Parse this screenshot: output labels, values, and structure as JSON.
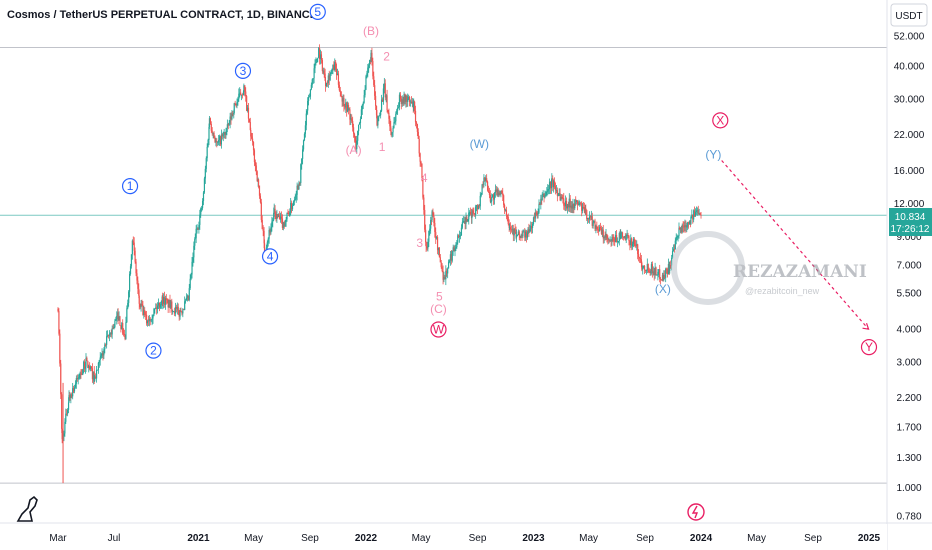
{
  "chart_title": "Cosmos / TetherUS PERPETUAL CONTRACT, 1D, BINANCE",
  "currency": "USDT",
  "price_badge": {
    "price": "10.834",
    "countdown": "17:26:12"
  },
  "watermark": {
    "name": "REZAZAMANI",
    "handle": "@rezabitcoin_new"
  },
  "colors": {
    "up": "#26a69a",
    "down": "#ef5350",
    "wave_blue": "#2962ff",
    "wave_blue_light": "#5b9bd5",
    "wave_pink": "#f48fb1",
    "wave_red": "#e91e63",
    "grid_line": "#b2b5be",
    "price_line": "#26a69a"
  },
  "chart_data": {
    "type": "candlestick",
    "y_scale": "log",
    "ylim": [
      0.7,
      60
    ],
    "y_ticks": [
      "52.000",
      "40.000",
      "30.000",
      "22.000",
      "16.000",
      "12.000",
      "9.000",
      "7.000",
      "5.500",
      "4.000",
      "3.000",
      "2.200",
      "1.700",
      "1.300",
      "1.000",
      "0.780"
    ],
    "x_ticks": [
      "Mar",
      "Jul",
      "2021",
      "May",
      "Sep",
      "2022",
      "May",
      "Sep",
      "2023",
      "May",
      "Sep",
      "2024",
      "May",
      "Sep",
      "2025"
    ],
    "horizontal_lines": [
      47.0,
      10.834,
      1.04
    ],
    "price_path": [
      [
        "2020-03-01",
        4.9
      ],
      [
        "2020-03-10",
        1.5
      ],
      [
        "2020-03-25",
        2.2
      ],
      [
        "2020-05-01",
        3.0
      ],
      [
        "2020-05-20",
        2.6
      ],
      [
        "2020-06-15",
        3.6
      ],
      [
        "2020-07-10",
        4.5
      ],
      [
        "2020-07-25",
        3.7
      ],
      [
        "2020-08-10",
        9.0
      ],
      [
        "2020-08-25",
        5.0
      ],
      [
        "2020-09-10",
        4.3
      ],
      [
        "2020-10-15",
        5.2
      ],
      [
        "2020-11-20",
        4.6
      ],
      [
        "2020-12-10",
        5.2
      ],
      [
        "2020-12-25",
        9.0
      ],
      [
        "2021-01-10",
        12.0
      ],
      [
        "2021-01-25",
        25.0
      ],
      [
        "2021-02-10",
        20.0
      ],
      [
        "2021-03-05",
        23.0
      ],
      [
        "2021-03-20",
        28.0
      ],
      [
        "2021-04-10",
        33.0
      ],
      [
        "2021-04-25",
        22.0
      ],
      [
        "2021-05-12",
        14.0
      ],
      [
        "2021-05-25",
        8.0
      ],
      [
        "2021-06-15",
        11.0
      ],
      [
        "2021-07-05",
        10.0
      ],
      [
        "2021-07-25",
        12.0
      ],
      [
        "2021-08-10",
        15.0
      ],
      [
        "2021-08-25",
        27.0
      ],
      [
        "2021-09-10",
        39.0
      ],
      [
        "2021-09-20",
        46.0
      ],
      [
        "2021-10-05",
        35.0
      ],
      [
        "2021-10-25",
        40.0
      ],
      [
        "2021-11-10",
        30.0
      ],
      [
        "2021-11-25",
        27.0
      ],
      [
        "2021-12-10",
        20.0
      ],
      [
        "2022-01-01",
        35.0
      ],
      [
        "2022-01-12",
        44.0
      ],
      [
        "2022-01-25",
        24.0
      ],
      [
        "2022-02-10",
        33.0
      ],
      [
        "2022-02-25",
        22.0
      ],
      [
        "2022-03-15",
        30.0
      ],
      [
        "2022-03-31",
        30.0
      ],
      [
        "2022-04-15",
        28.0
      ],
      [
        "2022-05-01",
        17.0
      ],
      [
        "2022-05-12",
        8.0
      ],
      [
        "2022-05-25",
        11.0
      ],
      [
        "2022-06-10",
        7.5
      ],
      [
        "2022-06-20",
        6.2
      ],
      [
        "2022-07-10",
        8.0
      ],
      [
        "2022-08-01",
        10.0
      ],
      [
        "2022-08-20",
        11.0
      ],
      [
        "2022-09-05",
        12.0
      ],
      [
        "2022-09-15",
        15.5
      ],
      [
        "2022-09-30",
        12.5
      ],
      [
        "2022-10-20",
        13.5
      ],
      [
        "2022-11-10",
        10.0
      ],
      [
        "2022-11-25",
        9.0
      ],
      [
        "2022-12-20",
        9.2
      ],
      [
        "2023-01-20",
        12.5
      ],
      [
        "2023-02-10",
        14.5
      ],
      [
        "2023-03-10",
        12.0
      ],
      [
        "2023-04-10",
        12.0
      ],
      [
        "2023-04-25",
        11.0
      ],
      [
        "2023-05-15",
        10.0
      ],
      [
        "2023-06-15",
        8.5
      ],
      [
        "2023-07-10",
        9.0
      ],
      [
        "2023-08-10",
        8.5
      ],
      [
        "2023-08-25",
        7.0
      ],
      [
        "2023-09-15",
        6.8
      ],
      [
        "2023-10-10",
        6.3
      ],
      [
        "2023-10-25",
        7.0
      ],
      [
        "2023-11-15",
        9.5
      ],
      [
        "2023-12-10",
        10.5
      ],
      [
        "2023-12-28",
        11.5
      ],
      [
        "2024-01-03",
        10.8
      ]
    ],
    "projection": [
      [
        "2024-02-15",
        17.5
      ],
      [
        "2024-12-31",
        4.0
      ]
    ],
    "wave_labels": [
      {
        "text": "1",
        "date": "2020-08-05",
        "price": 13.5,
        "style": "circle",
        "color": "wave_blue"
      },
      {
        "text": "2",
        "date": "2020-09-25",
        "price": 3.2,
        "style": "circle",
        "color": "wave_blue"
      },
      {
        "text": "3",
        "date": "2021-04-08",
        "price": 37.0,
        "style": "circle",
        "color": "wave_blue"
      },
      {
        "text": "4",
        "date": "2021-06-06",
        "price": 7.3,
        "style": "circle",
        "color": "wave_blue"
      },
      {
        "text": "5",
        "date": "2021-09-18",
        "price": 62.0,
        "style": "circle",
        "color": "wave_blue"
      },
      {
        "text": "(B)",
        "date": "2022-01-12",
        "price": 52.5,
        "style": "text",
        "color": "wave_pink"
      },
      {
        "text": "2",
        "date": "2022-02-15",
        "price": 42.0,
        "style": "text",
        "color": "wave_pink"
      },
      {
        "text": "(A)",
        "date": "2021-12-05",
        "price": 18.5,
        "style": "text",
        "color": "wave_pink"
      },
      {
        "text": "1",
        "date": "2022-02-05",
        "price": 19.0,
        "style": "text",
        "color": "wave_pink"
      },
      {
        "text": "4",
        "date": "2022-05-08",
        "price": 14.5,
        "style": "text",
        "color": "wave_pink"
      },
      {
        "text": "3",
        "date": "2022-04-28",
        "price": 8.2,
        "style": "text",
        "color": "wave_pink"
      },
      {
        "text": "5",
        "date": "2022-06-10",
        "price": 5.15,
        "style": "text",
        "color": "wave_pink"
      },
      {
        "text": "(C)",
        "date": "2022-06-08",
        "price": 4.6,
        "style": "text",
        "color": "wave_pink"
      },
      {
        "text": "W",
        "date": "2022-06-08",
        "price": 3.85,
        "style": "circle",
        "color": "wave_red"
      },
      {
        "text": "(W)",
        "date": "2022-09-05",
        "price": 19.5,
        "style": "text",
        "color": "wave_blue_light"
      },
      {
        "text": "(X)",
        "date": "2023-10-10",
        "price": 5.5,
        "style": "text",
        "color": "wave_blue_light"
      },
      {
        "text": "X",
        "date": "2024-02-12",
        "price": 24.0,
        "style": "circle",
        "color": "wave_red"
      },
      {
        "text": "(Y)",
        "date": "2024-01-28",
        "price": 17.8,
        "style": "text",
        "color": "wave_blue_light"
      },
      {
        "text": "Y",
        "date": "2025-01-01",
        "price": 3.3,
        "style": "circle",
        "color": "wave_red"
      }
    ]
  }
}
